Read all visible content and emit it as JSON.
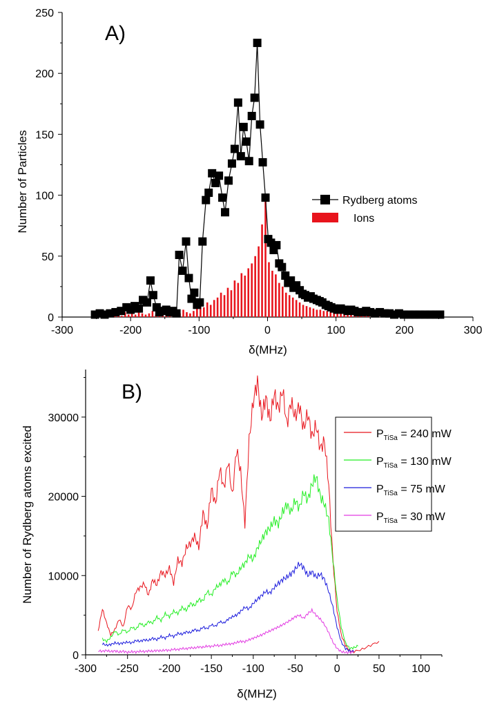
{
  "chart_data": [
    {
      "type": "scatter",
      "panel_label": "A)",
      "xlabel": "δ(MHz)",
      "ylabel": "Number of Particles",
      "xlim": [
        -300,
        300
      ],
      "ylim": [
        0,
        250
      ],
      "xticks": [
        -300,
        -200,
        -100,
        0,
        100,
        200,
        300
      ],
      "yticks": [
        0,
        50,
        100,
        150,
        200,
        250
      ],
      "legend_position": "right",
      "series": [
        {
          "name": "Rydberg atoms",
          "kind": "line-markers",
          "color": "#000000",
          "x": [
            -252,
            -245,
            -238,
            -230,
            -222,
            -214,
            -206,
            -200,
            -194,
            -188,
            -182,
            -176,
            -171,
            -167,
            -162,
            -158,
            -153,
            -148,
            -143,
            -138,
            -133,
            -129,
            -124,
            -119,
            -115,
            -111,
            -107,
            -103,
            -99,
            -95,
            -90,
            -86,
            -81,
            -76,
            -71,
            -66,
            -62,
            -57,
            -52,
            -48,
            -43,
            -39,
            -35,
            -31,
            -27,
            -23,
            -19,
            -15,
            -11,
            -7,
            -3,
            1,
            5,
            9,
            13,
            17,
            21,
            26,
            30,
            34,
            38,
            42,
            47,
            51,
            55,
            59,
            63,
            67,
            72,
            76,
            80,
            85,
            89,
            93,
            97,
            102,
            107,
            112,
            117,
            122,
            127,
            132,
            138,
            144,
            150,
            157,
            164,
            171,
            178,
            185,
            192,
            199,
            207,
            215,
            222,
            230,
            238,
            246,
            252
          ],
          "y": [
            2,
            3,
            2,
            3,
            4,
            5,
            8,
            6,
            9,
            7,
            14,
            12,
            30,
            18,
            8,
            4,
            5,
            6,
            4,
            5,
            3,
            51,
            38,
            62,
            32,
            15,
            20,
            10,
            12,
            62,
            96,
            102,
            118,
            110,
            116,
            98,
            86,
            112,
            126,
            138,
            176,
            132,
            156,
            144,
            128,
            165,
            180,
            225,
            158,
            127,
            98,
            64,
            61,
            55,
            59,
            44,
            41,
            34,
            28,
            30,
            24,
            26,
            22,
            19,
            18,
            16,
            17,
            15,
            14,
            13,
            12,
            10,
            9,
            8,
            7,
            6,
            7,
            6,
            5,
            6,
            5,
            4,
            4,
            5,
            4,
            3,
            4,
            3,
            3,
            2,
            3,
            2,
            2,
            2,
            2,
            2,
            2,
            2,
            2
          ]
        },
        {
          "name": "Ions",
          "kind": "bars",
          "color": "#e8141c",
          "x": [
            -248,
            -243,
            -238,
            -233,
            -228,
            -223,
            -218,
            -213,
            -208,
            -203,
            -198,
            -193,
            -188,
            -183,
            -178,
            -173,
            -168,
            -163,
            -158,
            -153,
            -148,
            -143,
            -138,
            -133,
            -128,
            -123,
            -118,
            -113,
            -108,
            -103,
            -98,
            -93,
            -88,
            -83,
            -78,
            -73,
            -68,
            -63,
            -58,
            -53,
            -48,
            -43,
            -38,
            -33,
            -28,
            -23,
            -18,
            -13,
            -8,
            -3,
            2,
            7,
            12,
            17,
            22,
            27,
            32,
            37,
            42,
            47,
            52,
            57,
            62,
            67,
            72,
            77,
            82,
            87,
            92,
            97,
            102,
            107,
            112,
            117,
            122,
            127,
            132,
            137,
            142,
            147,
            152,
            157,
            162,
            167,
            172,
            177,
            182,
            187,
            192,
            197,
            202,
            207,
            212,
            217,
            222,
            227,
            232,
            237,
            242,
            247
          ],
          "y": [
            2,
            1,
            3,
            2,
            1,
            2,
            3,
            1,
            4,
            2,
            3,
            2,
            4,
            3,
            2,
            3,
            5,
            2,
            3,
            2,
            4,
            3,
            2,
            5,
            3,
            6,
            4,
            3,
            5,
            7,
            9,
            8,
            12,
            10,
            14,
            16,
            20,
            18,
            24,
            22,
            30,
            28,
            36,
            34,
            40,
            44,
            50,
            58,
            76,
            95,
            45,
            38,
            35,
            28,
            25,
            20,
            18,
            16,
            14,
            12,
            10,
            9,
            8,
            7,
            6,
            6,
            5,
            5,
            4,
            4,
            4,
            3,
            3,
            3,
            3,
            2,
            2,
            2,
            2,
            2,
            2,
            2,
            2,
            2,
            2,
            2,
            2,
            2,
            2,
            2,
            1,
            1,
            1,
            1,
            1,
            1,
            1,
            1,
            1,
            1
          ]
        }
      ]
    },
    {
      "type": "line",
      "panel_label": "B)",
      "xlabel": "δ(MHZ)",
      "ylabel": "Number of Rydberg atoms excited",
      "xlim": [
        -300,
        125
      ],
      "ylim": [
        0,
        36000
      ],
      "xticks": [
        -300,
        -250,
        -200,
        -150,
        -100,
        -50,
        0,
        50,
        100
      ],
      "yticks": [
        0,
        10000,
        20000,
        30000
      ],
      "legend_position": "top-right",
      "series": [
        {
          "name_main": "P",
          "name_sub": "TiSa",
          "name_rest": " = 240 mW",
          "color": "#e8141c",
          "x": [
            -285,
            -280,
            -275,
            -270,
            -265,
            -260,
            -255,
            -250,
            -245,
            -240,
            -235,
            -230,
            -225,
            -220,
            -215,
            -210,
            -205,
            -200,
            -195,
            -190,
            -185,
            -180,
            -175,
            -170,
            -165,
            -160,
            -155,
            -150,
            -145,
            -140,
            -135,
            -130,
            -125,
            -120,
            -115,
            -110,
            -105,
            -100,
            -95,
            -90,
            -85,
            -80,
            -75,
            -70,
            -65,
            -60,
            -55,
            -50,
            -45,
            -40,
            -35,
            -30,
            -25,
            -20,
            -15,
            -10,
            -5,
            0,
            5,
            10,
            15,
            20,
            30,
            40,
            50
          ],
          "y": [
            3000,
            5800,
            4000,
            2500,
            3200,
            4500,
            3500,
            6200,
            5800,
            8000,
            8500,
            9000,
            7500,
            9500,
            8800,
            10500,
            10000,
            11000,
            9000,
            12000,
            11500,
            13500,
            14000,
            15000,
            13500,
            18000,
            16000,
            21000,
            19000,
            23500,
            21000,
            24500,
            20000,
            26000,
            23000,
            16500,
            27000,
            32000,
            34500,
            30000,
            32500,
            29500,
            33000,
            31000,
            33500,
            29000,
            32000,
            30000,
            31500,
            28500,
            30500,
            27500,
            29000,
            26000,
            27000,
            21500,
            12000,
            5500,
            2500,
            1200,
            500,
            400,
            700,
            1200,
            1700
          ]
        },
        {
          "name_main": "P",
          "name_sub": "TiSa",
          "name_rest": " = 130 mW",
          "color": "#22ee22",
          "x": [
            -280,
            -275,
            -270,
            -265,
            -260,
            -255,
            -250,
            -245,
            -240,
            -235,
            -230,
            -225,
            -220,
            -215,
            -210,
            -205,
            -200,
            -195,
            -190,
            -185,
            -180,
            -175,
            -170,
            -165,
            -160,
            -155,
            -150,
            -145,
            -140,
            -135,
            -130,
            -125,
            -120,
            -115,
            -110,
            -105,
            -100,
            -95,
            -90,
            -85,
            -80,
            -75,
            -70,
            -65,
            -60,
            -55,
            -50,
            -45,
            -40,
            -35,
            -30,
            -25,
            -20,
            -15,
            -10,
            -5,
            0,
            5,
            10,
            15,
            20,
            25
          ],
          "y": [
            2000,
            1700,
            2200,
            3000,
            2500,
            3200,
            2800,
            3500,
            3200,
            4000,
            3600,
            4200,
            4000,
            4800,
            4300,
            5200,
            4800,
            5500,
            5200,
            6000,
            5600,
            6500,
            6200,
            7000,
            6800,
            8000,
            7500,
            8500,
            8800,
            9500,
            9000,
            10500,
            10000,
            11000,
            11500,
            12500,
            12000,
            13500,
            14500,
            15500,
            16000,
            17000,
            16500,
            18000,
            19000,
            18000,
            19500,
            18500,
            20500,
            19500,
            21500,
            22500,
            20000,
            19000,
            17000,
            12000,
            7000,
            3500,
            1500,
            800,
            900,
            1100
          ]
        },
        {
          "name_main": "P",
          "name_sub": "TiSa",
          "name_rest": " = 75 mW",
          "color": "#1a1adc",
          "x": [
            -280,
            -275,
            -270,
            -265,
            -260,
            -255,
            -250,
            -245,
            -240,
            -235,
            -230,
            -225,
            -220,
            -215,
            -210,
            -205,
            -200,
            -195,
            -190,
            -185,
            -180,
            -175,
            -170,
            -165,
            -160,
            -155,
            -150,
            -145,
            -140,
            -135,
            -130,
            -125,
            -120,
            -115,
            -110,
            -105,
            -100,
            -95,
            -90,
            -85,
            -80,
            -75,
            -70,
            -65,
            -60,
            -55,
            -50,
            -45,
            -40,
            -35,
            -30,
            -25,
            -20,
            -15,
            -10,
            -5,
            0,
            5,
            10,
            15,
            20
          ],
          "y": [
            1400,
            1200,
            1300,
            1500,
            1400,
            1500,
            1600,
            1500,
            1800,
            1700,
            1900,
            1800,
            2100,
            1900,
            2300,
            2100,
            2500,
            2300,
            2700,
            2600,
            2900,
            2800,
            3200,
            3000,
            3500,
            3300,
            3800,
            3600,
            4200,
            4000,
            4500,
            4800,
            5000,
            5500,
            6000,
            5800,
            6500,
            7000,
            7500,
            8000,
            7800,
            8500,
            9000,
            9500,
            9800,
            10200,
            10800,
            11500,
            11000,
            10000,
            10500,
            9800,
            10200,
            9500,
            8000,
            6000,
            3500,
            1600,
            800,
            500,
            400
          ]
        },
        {
          "name_main": "P",
          "name_sub": "TiSa",
          "name_rest": " = 30 mW",
          "color": "#e23ae2",
          "x": [
            -285,
            -280,
            -275,
            -270,
            -265,
            -260,
            -255,
            -250,
            -245,
            -240,
            -235,
            -230,
            -225,
            -220,
            -215,
            -210,
            -205,
            -200,
            -195,
            -190,
            -185,
            -180,
            -175,
            -170,
            -165,
            -160,
            -155,
            -150,
            -145,
            -140,
            -135,
            -130,
            -125,
            -120,
            -115,
            -110,
            -105,
            -100,
            -95,
            -90,
            -85,
            -80,
            -75,
            -70,
            -65,
            -60,
            -55,
            -50,
            -45,
            -40,
            -35,
            -30,
            -25,
            -20,
            -15,
            -10,
            -5,
            0,
            5,
            10,
            15,
            20
          ],
          "y": [
            500,
            450,
            550,
            400,
            500,
            350,
            450,
            300,
            400,
            350,
            450,
            400,
            500,
            450,
            550,
            500,
            600,
            550,
            700,
            650,
            800,
            750,
            900,
            850,
            1000,
            950,
            1100,
            1050,
            1200,
            1150,
            1300,
            1350,
            1400,
            1550,
            1700,
            1650,
            1900,
            2100,
            2300,
            2500,
            2800,
            3000,
            3300,
            3500,
            3800,
            4100,
            4400,
            4800,
            5000,
            4600,
            5200,
            5600,
            5000,
            4500,
            3800,
            2800,
            1600,
            800,
            400,
            300,
            300,
            350
          ]
        }
      ]
    }
  ]
}
